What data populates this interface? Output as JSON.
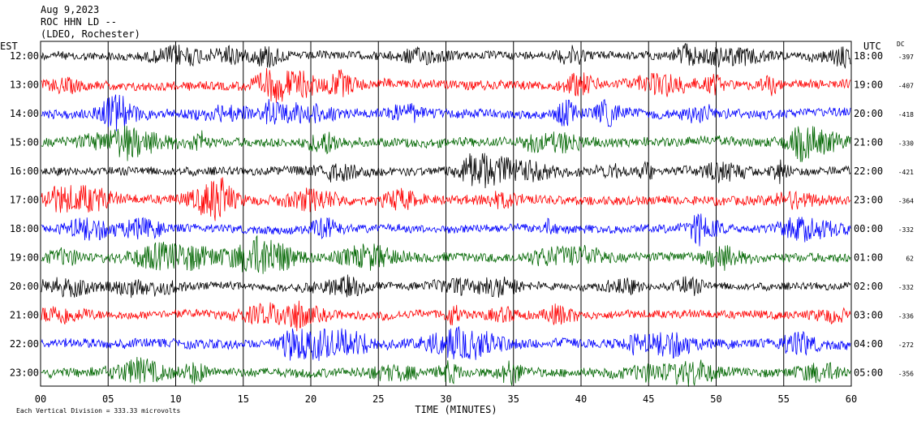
{
  "header": {
    "date": "Aug 9,2023",
    "station": "ROC HHN LD --",
    "network": "(LDEO, Rochester)"
  },
  "left_zone_label": "EST",
  "right_zone_label": "UTC",
  "dc_label": "DC",
  "footer_note": "Each Vertical Division =  333.33 microvolts",
  "chart_data": {
    "type": "line",
    "title": "",
    "xlabel": "TIME (MINUTES)",
    "ylabel": "",
    "xlim": [
      0,
      60
    ],
    "x_ticks": [
      "00",
      "05",
      "10",
      "15",
      "20",
      "25",
      "30",
      "35",
      "40",
      "45",
      "50",
      "55",
      "60"
    ],
    "grid": true,
    "trace_colors": [
      "#000000",
      "#ff0000",
      "#0000ff",
      "#006600"
    ],
    "rows": [
      {
        "est": "12:00",
        "utc": "18:00",
        "dc": "-397",
        "color": "#000000",
        "amp": 9
      },
      {
        "est": "13:00",
        "utc": "19:00",
        "dc": "-407",
        "color": "#ff0000",
        "amp": 10
      },
      {
        "est": "14:00",
        "utc": "20:00",
        "dc": "-418",
        "color": "#0000ff",
        "amp": 10
      },
      {
        "est": "15:00",
        "utc": "21:00",
        "dc": "-330",
        "color": "#006600",
        "amp": 10
      },
      {
        "est": "16:00",
        "utc": "22:00",
        "dc": "-421",
        "color": "#000000",
        "amp": 9
      },
      {
        "est": "17:00",
        "utc": "23:00",
        "dc": "-364",
        "color": "#ff0000",
        "amp": 10
      },
      {
        "est": "18:00",
        "utc": "00:00",
        "dc": "-332",
        "color": "#0000ff",
        "amp": 9
      },
      {
        "est": "19:00",
        "utc": "01:00",
        "dc": "62",
        "color": "#006600",
        "amp": 10
      },
      {
        "est": "20:00",
        "utc": "02:00",
        "dc": "-332",
        "color": "#000000",
        "amp": 8
      },
      {
        "est": "21:00",
        "utc": "03:00",
        "dc": "-336",
        "color": "#ff0000",
        "amp": 9
      },
      {
        "est": "22:00",
        "utc": "04:00",
        "dc": "-272",
        "color": "#0000ff",
        "amp": 10
      },
      {
        "est": "23:00",
        "utc": "05:00",
        "dc": "-356",
        "color": "#006600",
        "amp": 10
      }
    ]
  }
}
